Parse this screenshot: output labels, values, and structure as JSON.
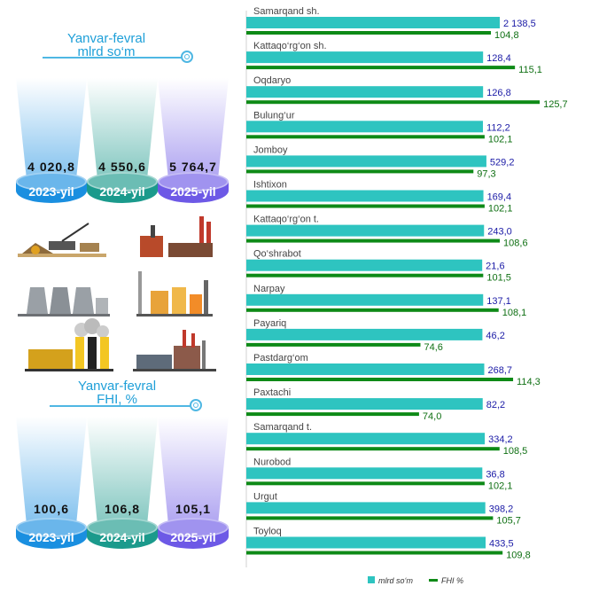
{
  "left": {
    "header1": {
      "line1": "Yanvar-fevral",
      "line2": "mlrd so‘m"
    },
    "header2": {
      "line1": "Yanvar-fevral",
      "line2": "FHI, %"
    },
    "top_pedestals": [
      {
        "value": "4 020,8",
        "year": "2023-yil",
        "color": "#1a8fe0"
      },
      {
        "value": "4 550,6",
        "year": "2024-yil",
        "color": "#1b9a8c"
      },
      {
        "value": "5 764,7",
        "year": "2025-yil",
        "color": "#6d59e6"
      }
    ],
    "bottom_pedestals": [
      {
        "value": "100,6",
        "year": "2023-yil",
        "color": "#1a8fe0"
      },
      {
        "value": "106,8",
        "year": "2024-yil",
        "color": "#1b9a8c"
      },
      {
        "value": "105,1",
        "year": "2025-yil",
        "color": "#6d59e6"
      }
    ],
    "factory_icons": [
      "excavator-icon",
      "brick-factory-icon",
      "cooling-towers-icon",
      "refinery-icon",
      "smoke-factory-icon",
      "industrial-plant-icon"
    ]
  },
  "chart_data": {
    "type": "bar",
    "orientation": "horizontal",
    "categories": [
      "Samarqand sh.",
      "Kattaqo‘rg‘on sh.",
      "Oqdaryo",
      "Bulung‘ur",
      "Jomboy",
      "Ishtixon",
      "Kattaqo‘rg‘on t.",
      "Qo‘shrabot",
      "Narpay",
      "Payariq",
      "Pastdarg‘om",
      "Paxtachi",
      "Samarqand t.",
      "Nurobod",
      "Urgut",
      "Toyloq"
    ],
    "series": [
      {
        "name": "mlrd so‘m",
        "color": "#2ec4c0",
        "values": [
          2138.5,
          128.4,
          126.8,
          112.2,
          529.2,
          169.4,
          243.0,
          21.6,
          137.1,
          46.2,
          268.7,
          82.2,
          334.2,
          36.8,
          398.2,
          433.5
        ],
        "labels": [
          "2 138,5",
          "128,4",
          "126,8",
          "112,2",
          "529,2",
          "169,4",
          "243,0",
          "21,6",
          "137,1",
          "46,2",
          "268,7",
          "82,2",
          "334,2",
          "36,8",
          "398,2",
          "433,5"
        ]
      },
      {
        "name": "FHI %",
        "color": "#0e8a17",
        "values": [
          104.8,
          115.1,
          125.7,
          102.1,
          97.3,
          102.1,
          108.6,
          101.5,
          108.1,
          74.6,
          114.3,
          74.0,
          108.5,
          102.1,
          105.7,
          109.8
        ],
        "labels": [
          "104,8",
          "115,1",
          "125,7",
          "102,1",
          "97,3",
          "102,1",
          "108,6",
          "101,5",
          "108,1",
          "74,6",
          "114,3",
          "74,0",
          "108,5",
          "102,1",
          "105,7",
          "109,8"
        ]
      }
    ],
    "legend": "bottom",
    "value_label_color": "#1a1aa6",
    "fhi_label_color": "#0e6f12"
  }
}
